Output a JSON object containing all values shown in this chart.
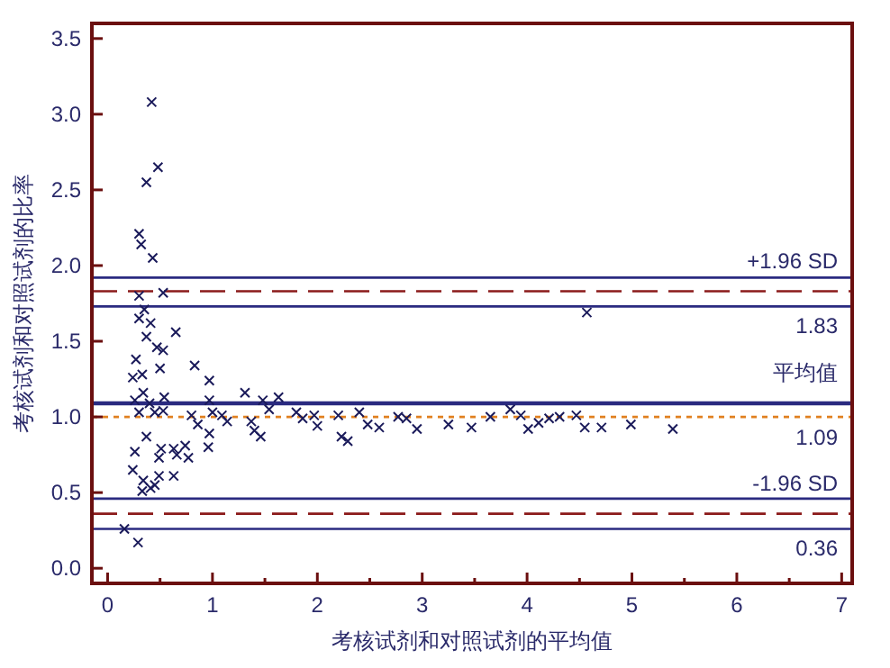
{
  "chart_data": {
    "type": "scatter",
    "xlabel": "考核试剂和对照试剂的平均值",
    "ylabel": "考核试剂和对照试剂的比率",
    "xlim": [
      -0.15,
      7.1
    ],
    "ylim": [
      -0.1,
      3.6
    ],
    "xticks": [
      0,
      {
        "value": 0.5,
        "label": null
      },
      1,
      {
        "value": 1.5,
        "label": null
      },
      2,
      {
        "value": 2.5,
        "label": null
      },
      3,
      {
        "value": 3.5,
        "label": null
      },
      4,
      {
        "value": 4.5,
        "label": null
      },
      5,
      {
        "value": 5.5,
        "label": null
      },
      6,
      {
        "value": 6.5,
        "label": null
      },
      7
    ],
    "yticks": [
      {
        "value": 0,
        "label": "0.0"
      },
      0.5,
      {
        "value": 1,
        "label": "1.0"
      },
      1.5,
      {
        "value": 2,
        "label": "2.0"
      },
      2.5,
      {
        "value": 3,
        "label": "3.0"
      },
      3.5
    ],
    "marker": "cross",
    "grid": false,
    "annotations": [
      {
        "text": "1.83",
        "y": 1.83
      },
      {
        "text": "1.09",
        "y": 1.09
      },
      {
        "text": "0.36",
        "y": 0.36
      }
    ],
    "series": [
      {
        "color": "#1a1a5a",
        "x": [
          0.42,
          0.48,
          0.37,
          0.3,
          0.32,
          0.43,
          0.3,
          0.53,
          0.35,
          0.3,
          0.41,
          0.65,
          0.37,
          0.47,
          0.53,
          0.27,
          0.24,
          0.33,
          0.5,
          0.83,
          0.97,
          0.34,
          0.54,
          0.26,
          0.4,
          0.3,
          0.45,
          0.53,
          0.8,
          0.97,
          1.0,
          0.86,
          1.09,
          1.14,
          1.31,
          1.48,
          1.63,
          1.54,
          1.37,
          1.4,
          1.46,
          0.97,
          0.37,
          0.51,
          0.63,
          0.66,
          0.74,
          0.77,
          0.49,
          0.96,
          0.26,
          0.24,
          0.49,
          0.63,
          0.34,
          0.45,
          0.33,
          0.41,
          0.16,
          0.29,
          1.8,
          1.86,
          1.97,
          2.0,
          2.2,
          2.23,
          2.29,
          2.4,
          2.48,
          2.59,
          2.77,
          2.85,
          2.95,
          3.25,
          3.47,
          3.65,
          3.84,
          3.94,
          4.01,
          4.11,
          4.21,
          4.31,
          4.47,
          4.55,
          4.71,
          4.99,
          4.57,
          5.39
        ],
        "values": [
          3.08,
          2.65,
          2.55,
          2.21,
          2.14,
          2.05,
          1.8,
          1.82,
          1.71,
          1.65,
          1.62,
          1.56,
          1.53,
          1.46,
          1.44,
          1.38,
          1.26,
          1.28,
          1.32,
          1.34,
          1.24,
          1.16,
          1.13,
          1.11,
          1.09,
          1.03,
          1.03,
          1.04,
          1.01,
          1.11,
          1.03,
          0.95,
          1.01,
          0.97,
          1.16,
          1.11,
          1.13,
          1.05,
          0.97,
          0.91,
          0.87,
          0.89,
          0.87,
          0.79,
          0.79,
          0.75,
          0.81,
          0.73,
          0.73,
          0.8,
          0.77,
          0.65,
          0.61,
          0.61,
          0.58,
          0.55,
          0.51,
          0.53,
          0.26,
          0.17,
          1.03,
          0.99,
          1.01,
          0.94,
          1.01,
          0.87,
          0.84,
          1.03,
          0.95,
          0.93,
          1.0,
          0.99,
          0.92,
          0.95,
          0.93,
          1.0,
          1.05,
          1.01,
          0.92,
          0.96,
          0.99,
          1.0,
          1.01,
          0.93,
          0.93,
          0.95,
          1.69,
          0.92
        ]
      }
    ],
    "ref_lines": [
      {
        "axis": "y",
        "value": 1.92,
        "color": "#2a2a80",
        "line_style": "solid"
      },
      {
        "axis": "y",
        "value": 1.83,
        "label": "+1.96 SD",
        "color": "#8b1a1a",
        "line_style": "dashed"
      },
      {
        "axis": "y",
        "value": 1.73,
        "color": "#2a2a80",
        "line_style": "solid"
      },
      {
        "axis": "y",
        "value": 1.09,
        "label": "平均值",
        "color": "#2a2a80",
        "line_style": "solid"
      },
      {
        "axis": "y",
        "value": 1.0,
        "color": "#e08020",
        "line_style": "dotted"
      },
      {
        "axis": "y",
        "value": 0.46,
        "color": "#2a2a80",
        "line_style": "solid"
      },
      {
        "axis": "y",
        "value": 0.36,
        "label": "-1.96 SD",
        "color": "#8b1a1a",
        "line_style": "dashed"
      },
      {
        "axis": "y",
        "value": 0.26,
        "color": "#2a2a80",
        "line_style": "solid"
      }
    ]
  }
}
